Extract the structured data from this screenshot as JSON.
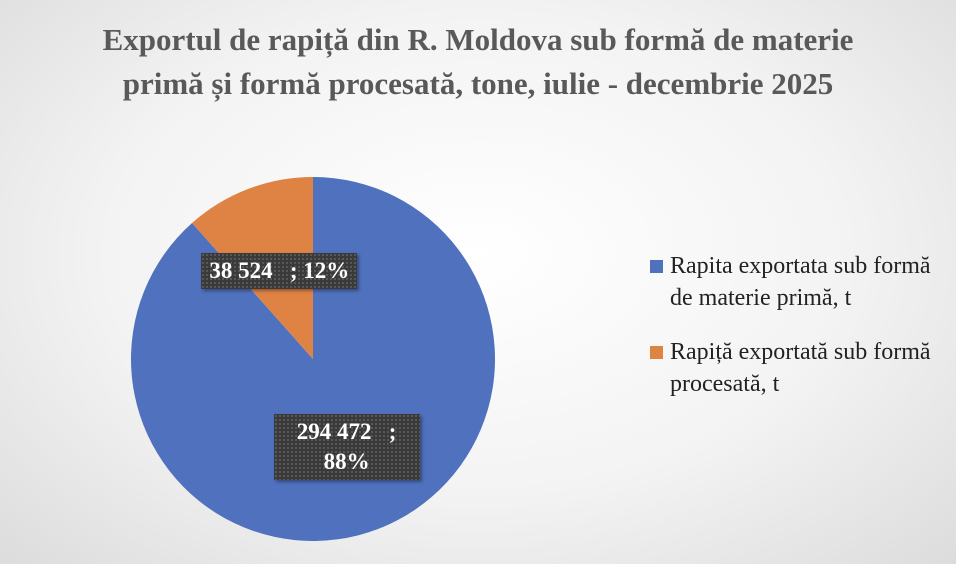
{
  "chart_data": {
    "type": "pie",
    "title": "Exportul de rapiță din R. Moldova sub formă de materie primă și formă procesată, tone, iulie - decembrie 2025",
    "categories": [
      "Rapita exportata sub formă de materie primă, t",
      "Rapiță exportată sub formă procesată, t"
    ],
    "values": [
      294472,
      38524
    ],
    "value_labels": [
      "294 472   ; 88%",
      "38 524   ; 12%"
    ],
    "colors": [
      "#4f71be",
      "#df8344"
    ]
  }
}
